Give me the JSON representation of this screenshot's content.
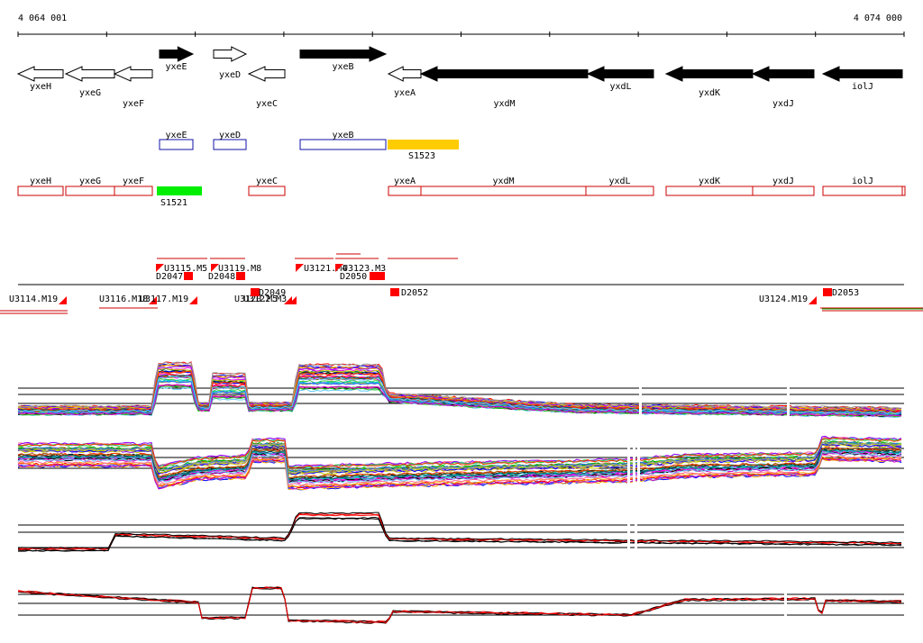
{
  "coords": {
    "start": "4 064 001",
    "end": "4 074 000"
  },
  "genes": [
    {
      "name": "yxeH",
      "strand": "-",
      "fill": "white"
    },
    {
      "name": "yxeG",
      "strand": "-",
      "fill": "white"
    },
    {
      "name": "yxeF",
      "strand": "-",
      "fill": "white"
    },
    {
      "name": "yxeE",
      "strand": "+",
      "fill": "black"
    },
    {
      "name": "yxeD",
      "strand": "+",
      "fill": "white"
    },
    {
      "name": "yxeC",
      "strand": "-",
      "fill": "white"
    },
    {
      "name": "yxeB",
      "strand": "+",
      "fill": "black"
    },
    {
      "name": "yxeA",
      "strand": "-",
      "fill": "white"
    },
    {
      "name": "yxdM",
      "strand": "-",
      "fill": "black"
    },
    {
      "name": "yxdL",
      "strand": "-",
      "fill": "black"
    },
    {
      "name": "yxdK",
      "strand": "-",
      "fill": "black"
    },
    {
      "name": "yxdJ",
      "strand": "-",
      "fill": "black"
    },
    {
      "name": "iolJ",
      "strand": "-",
      "fill": "black"
    }
  ],
  "plus_boxes": [
    "yxeE",
    "yxeD",
    "yxeB"
  ],
  "plus_feature": {
    "name": "S1523",
    "color": "#ffcc00"
  },
  "minus_boxes": [
    "yxeH",
    "yxeG",
    "yxeF",
    "yxeC",
    "yxeA",
    "yxdM",
    "yxdL",
    "yxdK",
    "yxdJ",
    "iolJ"
  ],
  "minus_feature": {
    "name": "S1521",
    "color": "#00ee00"
  },
  "upshifts": [
    "U3114.M19",
    "U3115.M5",
    "U3116.M18",
    "U3117.M19",
    "U3119.M8",
    "U3120.M5",
    "U3121.M4",
    "U3122.M3",
    "U3123.M3",
    "U3124.M19"
  ],
  "downshifts": [
    "D2047",
    "D2048",
    "D2049",
    "D2050",
    "D2052",
    "D2053"
  ],
  "colors": {
    "arrow": "#000000",
    "plus_box": "#1111aa",
    "minus_box": "#cc0000",
    "marker": "#ff0000",
    "curve_red": "#ff0000",
    "curve_black": "#000000"
  },
  "profiles": [
    {
      "name": "condition-profiles-plus"
    },
    {
      "name": "condition-profiles-minus"
    },
    {
      "name": "summary-profile-plus"
    },
    {
      "name": "summary-profile-minus"
    }
  ]
}
